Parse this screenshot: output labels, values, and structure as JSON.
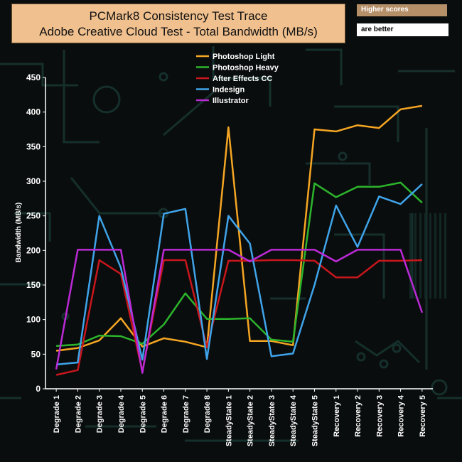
{
  "header": {
    "title_line1": "PCMark8 Consistency Test Trace",
    "title_line2": "Adobe Creative Cloud Test - Total Bandwidth (MB/s)",
    "note_line1": "Higher scores",
    "note_line2": "are better"
  },
  "chart_data": {
    "type": "line",
    "title": "PCMark8 Consistency Test Trace Adobe Creative Cloud Test - Total Bandwidth (MB/s)",
    "ylabel": "Bandwidth (MB/s)",
    "xlabel": "",
    "ylim": [
      0,
      450
    ],
    "yticks": [
      0,
      50,
      100,
      150,
      200,
      250,
      300,
      350,
      400,
      450
    ],
    "legend_position": "top",
    "grid": false,
    "categories": [
      "Degrade 1",
      "Degrade 2",
      "Degrade 3",
      "Degrade 4",
      "Degrade 5",
      "Degrade 6",
      "Degrade 7",
      "Degrade 8",
      "SteadyState 1",
      "SteadyState 2",
      "SteadyState 3",
      "SteadyState 4",
      "SteadyState 5",
      "Recovery 1",
      "Recovery 2",
      "Recovery 3",
      "Recovery 4",
      "Recovery 5"
    ],
    "series": [
      {
        "name": "Photoshop Light",
        "color": "#f5a623",
        "values": [
          55,
          59,
          70,
          102,
          61,
          73,
          68,
          60,
          378,
          69,
          69,
          63,
          375,
          372,
          381,
          377,
          404,
          409
        ]
      },
      {
        "name": " Photoshop Heavy",
        "color": "#2cb52c",
        "values": [
          62,
          64,
          77,
          76,
          65,
          93,
          138,
          101,
          101,
          102,
          71,
          68,
          297,
          277,
          292,
          292,
          298,
          269
        ]
      },
      {
        "name": "After Effects CC",
        "color": "#c8161d",
        "values": [
          20,
          27,
          186,
          166,
          25,
          186,
          186,
          60,
          185,
          185,
          186,
          186,
          185,
          161,
          161,
          185,
          185,
          186
        ]
      },
      {
        "name": "Indesign",
        "color": "#3fa4ea",
        "values": [
          35,
          38,
          250,
          175,
          42,
          253,
          260,
          43,
          250,
          210,
          47,
          51,
          150,
          265,
          205,
          278,
          267,
          296
        ]
      },
      {
        "name": "Illustrator",
        "color": "#bb2ad6",
        "values": [
          28,
          201,
          201,
          201,
          23,
          201,
          201,
          201,
          201,
          184,
          201,
          201,
          201,
          184,
          201,
          201,
          201,
          110
        ]
      }
    ]
  }
}
